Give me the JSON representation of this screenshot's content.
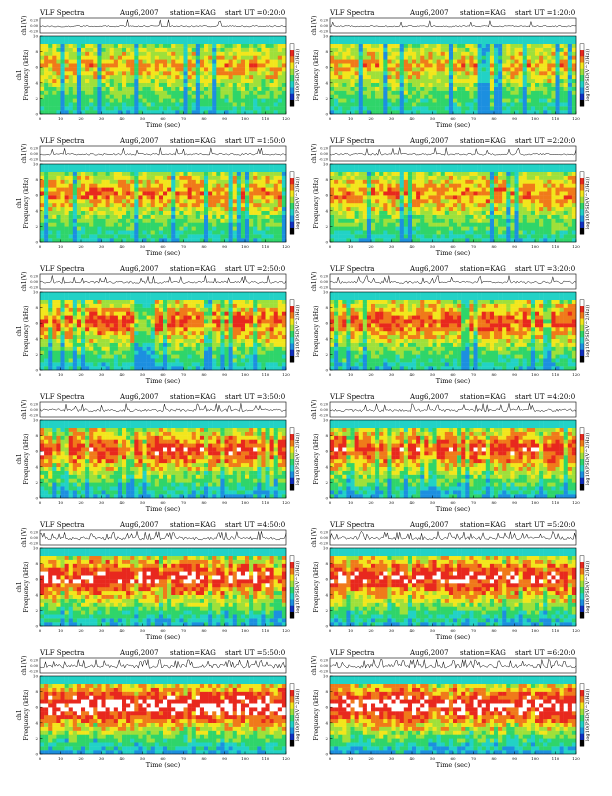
{
  "chart_data": [
    {
      "type": "heatmap",
      "title": "VLF Spectra",
      "date": "Aug6,2007",
      "station": "station=KAG",
      "start": "start  UT =0:20:0",
      "top_ylabel": "ch1(V)",
      "top_ticks": [
        "0.20",
        "0.00",
        "-0.20"
      ],
      "ylabel": "Frequency (kHz)",
      "ylabel_prefix": "ch1",
      "xlabel": "Time (sec)",
      "xlim": [
        0,
        120
      ],
      "ylim": [
        0,
        10
      ],
      "xticks": [
        "0",
        "10",
        "20",
        "30",
        "40",
        "50",
        "60",
        "70",
        "80",
        "90",
        "100",
        "110",
        "120"
      ],
      "yticks": [
        "0",
        "2",
        "4",
        "6",
        "8",
        "10"
      ],
      "colorbar_label": "log10(PSD(V^2/Hz))",
      "intensity": 1
    },
    {
      "type": "heatmap",
      "title": "VLF Spectra",
      "date": "Aug6,2007",
      "station": "station=KAG",
      "start": "start  UT =1:20:0",
      "top_ylabel": "ch1(V)",
      "top_ticks": [
        "0.20",
        "0.00",
        "-0.20"
      ],
      "ylabel": "Frequency (kHz)",
      "ylabel_prefix": "",
      "xlabel": "Time (sec)",
      "xlim": [
        0,
        120
      ],
      "ylim": [
        0,
        10
      ],
      "xticks": [
        "0",
        "10",
        "20",
        "30",
        "40",
        "50",
        "60",
        "70",
        "80",
        "90",
        "100",
        "110",
        "120"
      ],
      "yticks": [
        "0",
        "2",
        "4",
        "6",
        "8",
        "10"
      ],
      "colorbar_label": "log10(PSD(V^2/Hz))",
      "intensity": 1
    },
    {
      "type": "heatmap",
      "title": "VLF Spectra",
      "date": "Aug6,2007",
      "station": "station=KAG",
      "start": "start  UT =1:50:0",
      "top_ylabel": "ch1(V)",
      "top_ticks": [
        "0.20",
        "0.00",
        "-0.20"
      ],
      "ylabel": "Frequency (kHz)",
      "ylabel_prefix": "ch1",
      "xlabel": "Time (sec)",
      "xlim": [
        0,
        120
      ],
      "ylim": [
        0,
        10
      ],
      "xticks": [
        "0",
        "10",
        "20",
        "30",
        "40",
        "50",
        "60",
        "70",
        "80",
        "90",
        "100",
        "110",
        "120"
      ],
      "yticks": [
        "0",
        "2",
        "4",
        "6",
        "8",
        "10"
      ],
      "colorbar_label": "log10(PSD(V^2/Hz))",
      "intensity": 2
    },
    {
      "type": "heatmap",
      "title": "VLF Spectra",
      "date": "Aug6,2007",
      "station": "station=KAG",
      "start": "start  UT =2:20:0",
      "top_ylabel": "ch1(V)",
      "top_ticks": [
        "0.20",
        "0.00",
        "-0.20"
      ],
      "ylabel": "Frequency (kHz)",
      "ylabel_prefix": "",
      "xlabel": "Time (sec)",
      "xlim": [
        0,
        120
      ],
      "ylim": [
        0,
        10
      ],
      "xticks": [
        "0",
        "10",
        "20",
        "30",
        "40",
        "50",
        "60",
        "70",
        "80",
        "90",
        "100",
        "110",
        "120"
      ],
      "yticks": [
        "0",
        "2",
        "4",
        "6",
        "8",
        "10"
      ],
      "colorbar_label": "log10(PSD(V^2/Hz))",
      "intensity": 2
    },
    {
      "type": "heatmap",
      "title": "VLF Spectra",
      "date": "Aug6,2007",
      "station": "station=KAG",
      "start": "start  UT =2:50:0",
      "top_ylabel": "ch1(V)",
      "top_ticks": [
        "0.20",
        "0.00",
        "-0.20"
      ],
      "ylabel": "Frequency (kHz)",
      "ylabel_prefix": "ch1",
      "xlabel": "Time (sec)",
      "xlim": [
        0,
        120
      ],
      "ylim": [
        0,
        10
      ],
      "xticks": [
        "0",
        "10",
        "20",
        "30",
        "40",
        "50",
        "60",
        "70",
        "80",
        "90",
        "100",
        "110",
        "120"
      ],
      "yticks": [
        "0",
        "2",
        "4",
        "6",
        "8",
        "10"
      ],
      "colorbar_label": "log10(PSD(V^2/Hz))",
      "intensity": 3
    },
    {
      "type": "heatmap",
      "title": "VLF Spectra",
      "date": "Aug6,2007",
      "station": "station=KAG",
      "start": "start  UT =3:20:0",
      "top_ylabel": "ch1(V)",
      "top_ticks": [
        "0.20",
        "0.00",
        "-0.20"
      ],
      "ylabel": "Frequency (kHz)",
      "ylabel_prefix": "",
      "xlabel": "Time (sec)",
      "xlim": [
        0,
        120
      ],
      "ylim": [
        0,
        10
      ],
      "xticks": [
        "0",
        "10",
        "20",
        "30",
        "40",
        "50",
        "60",
        "70",
        "80",
        "90",
        "100",
        "110",
        "120"
      ],
      "yticks": [
        "0",
        "2",
        "4",
        "6",
        "8",
        "10"
      ],
      "colorbar_label": "log10(PSD(V^2/Hz))",
      "intensity": 3
    },
    {
      "type": "heatmap",
      "title": "VLF Spectra",
      "date": "Aug6,2007",
      "station": "station=KAG",
      "start": "start  UT =3:50:0",
      "top_ylabel": "ch1(V)",
      "top_ticks": [
        "0.20",
        "0.00",
        "-0.20"
      ],
      "ylabel": "Frequency (kHz)",
      "ylabel_prefix": "ch1",
      "xlabel": "Time (sec)",
      "xlim": [
        0,
        120
      ],
      "ylim": [
        0,
        10
      ],
      "xticks": [
        "0",
        "10",
        "20",
        "30",
        "40",
        "50",
        "60",
        "70",
        "80",
        "90",
        "100",
        "110",
        "120"
      ],
      "yticks": [
        "0",
        "2",
        "4",
        "6",
        "8",
        "10"
      ],
      "colorbar_label": "log10(PSD(V^2/Hz))",
      "intensity": 4
    },
    {
      "type": "heatmap",
      "title": "VLF Spectra",
      "date": "Aug6,2007",
      "station": "station=KAG",
      "start": "start  UT =4:20:0",
      "top_ylabel": "ch1(V)",
      "top_ticks": [
        "0.20",
        "0.00",
        "-0.20"
      ],
      "ylabel": "Frequency (kHz)",
      "ylabel_prefix": "",
      "xlabel": "Time (sec)",
      "xlim": [
        0,
        120
      ],
      "ylim": [
        0,
        10
      ],
      "xticks": [
        "0",
        "10",
        "20",
        "30",
        "40",
        "50",
        "60",
        "70",
        "80",
        "90",
        "100",
        "110",
        "120"
      ],
      "yticks": [
        "0",
        "2",
        "4",
        "6",
        "8",
        "10"
      ],
      "colorbar_label": "log10(PSD(V^2/Hz))",
      "intensity": 4
    },
    {
      "type": "heatmap",
      "title": "VLF Spectra",
      "date": "Aug6,2007",
      "station": "station=KAG",
      "start": "start  UT =4:50:0",
      "top_ylabel": "ch1(V)",
      "top_ticks": [
        "0.20",
        "0.00",
        "-0.20"
      ],
      "ylabel": "Frequency (kHz)",
      "ylabel_prefix": "ch1",
      "xlabel": "Time (sec)",
      "xlim": [
        0,
        120
      ],
      "ylim": [
        0,
        10
      ],
      "xticks": [
        "0",
        "10",
        "20",
        "30",
        "40",
        "50",
        "60",
        "70",
        "80",
        "90",
        "100",
        "110",
        "120"
      ],
      "yticks": [
        "0",
        "2",
        "4",
        "6",
        "8",
        "10"
      ],
      "colorbar_label": "log10(PSD(V^2/Hz))",
      "intensity": 5
    },
    {
      "type": "heatmap",
      "title": "VLF Spectra",
      "date": "Aug6,2007",
      "station": "station=KAG",
      "start": "start  UT =5:20:0",
      "top_ylabel": "ch1(V)",
      "top_ticks": [
        "0.20",
        "0.00",
        "-0.20"
      ],
      "ylabel": "Frequency (kHz)",
      "ylabel_prefix": "",
      "xlabel": "Time (sec)",
      "xlim": [
        0,
        120
      ],
      "ylim": [
        0,
        10
      ],
      "xticks": [
        "0",
        "10",
        "20",
        "30",
        "40",
        "50",
        "60",
        "70",
        "80",
        "90",
        "100",
        "110",
        "120"
      ],
      "yticks": [
        "0",
        "2",
        "4",
        "6",
        "8",
        "10"
      ],
      "colorbar_label": "log10(PSD(V^2/Hz))",
      "intensity": 5
    },
    {
      "type": "heatmap",
      "title": "VLF Spectra",
      "date": "Aug6,2007",
      "station": "station=KAG",
      "start": "start  UT =5:50:0",
      "top_ylabel": "ch1(V)",
      "top_ticks": [
        "0.20",
        "0.00",
        "-0.20"
      ],
      "ylabel": "Frequency (kHz)",
      "ylabel_prefix": "ch1",
      "xlabel": "Time (sec)",
      "xlim": [
        0,
        120
      ],
      "ylim": [
        0,
        10
      ],
      "xticks": [
        "0",
        "10",
        "20",
        "30",
        "40",
        "50",
        "60",
        "70",
        "80",
        "90",
        "100",
        "110",
        "120"
      ],
      "yticks": [
        "0",
        "2",
        "4",
        "6",
        "8",
        "10"
      ],
      "colorbar_label": "log10(PSD(V^2/Hz))",
      "intensity": 6
    },
    {
      "type": "heatmap",
      "title": "VLF Spectra",
      "date": "Aug6,2007",
      "station": "station=KAG",
      "start": "start  UT =6:20:0",
      "top_ylabel": "ch1(V)",
      "top_ticks": [
        "0.20",
        "0.00",
        "-0.20"
      ],
      "ylabel": "Frequency (kHz)",
      "ylabel_prefix": "",
      "xlabel": "Time (sec)",
      "xlim": [
        0,
        120
      ],
      "ylim": [
        0,
        10
      ],
      "xticks": [
        "0",
        "10",
        "20",
        "30",
        "40",
        "50",
        "60",
        "70",
        "80",
        "90",
        "100",
        "110",
        "120"
      ],
      "yticks": [
        "0",
        "2",
        "4",
        "6",
        "8",
        "10"
      ],
      "colorbar_label": "log10(PSD(V^2/Hz))",
      "intensity": 6
    }
  ]
}
